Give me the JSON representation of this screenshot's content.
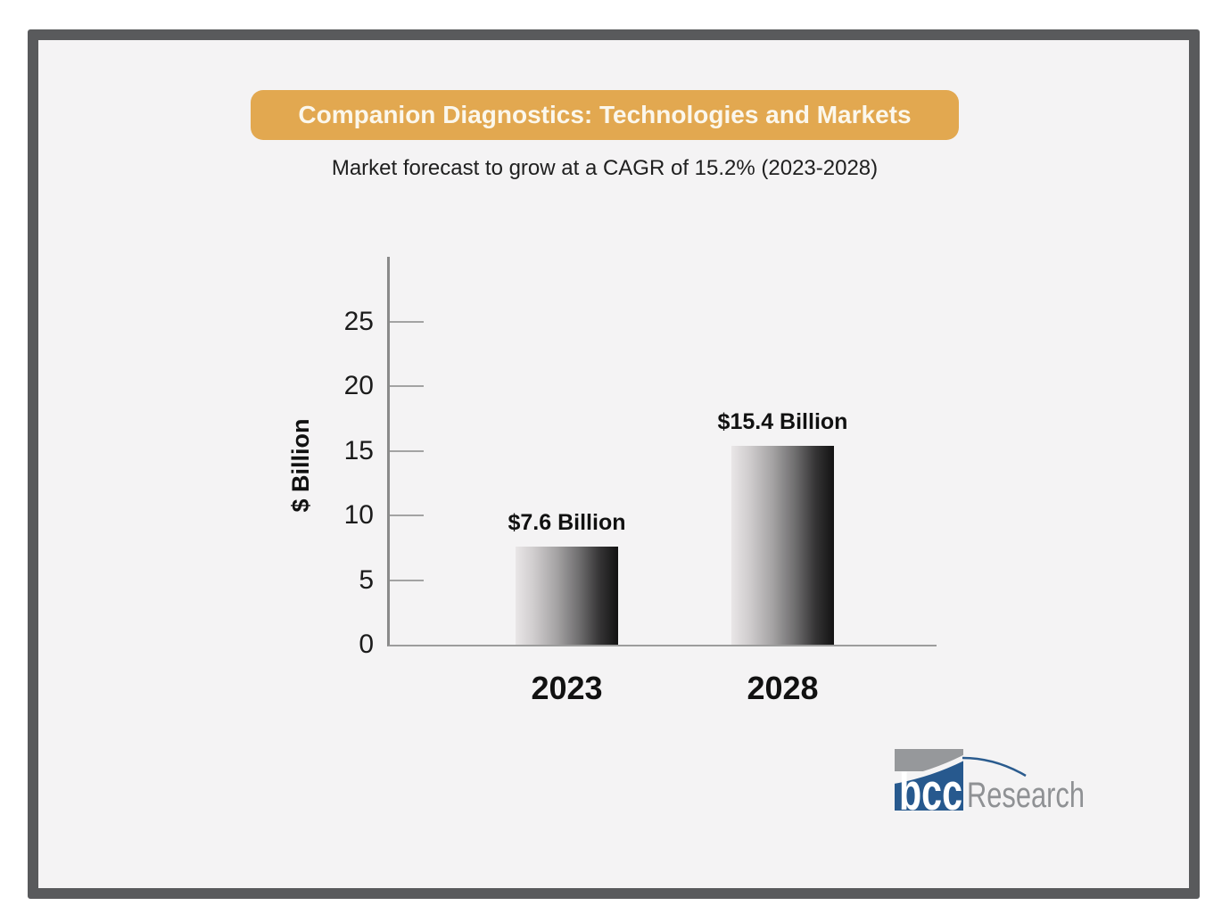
{
  "banner": {
    "title": "Companion Diagnostics: Technologies and Markets"
  },
  "subtitle": "Market forecast to grow at a CAGR of 15.2% (2023-2028)",
  "chart_data": {
    "type": "bar",
    "categories": [
      "2023",
      "2028"
    ],
    "values": [
      7.6,
      15.4
    ],
    "bar_labels": [
      "$7.6 Billion",
      "$15.4 Billion"
    ],
    "title": "",
    "xlabel": "",
    "ylabel": "$ Billion",
    "ylim": [
      0,
      30
    ],
    "yticks": [
      0,
      5,
      10,
      15,
      20,
      25
    ],
    "grid": false,
    "legend": false,
    "bar_style": "horizontal gradient, light gray to black"
  },
  "logo": {
    "bcc": "bcc",
    "research": "Research"
  },
  "colors": {
    "frame_border": "#595a5c",
    "slide_background": "#f4f3f4",
    "banner_background": "#e2a850",
    "banner_text": "#fbf7ec",
    "axis_gray": "#9c9c9c",
    "bar_gradient_start": "#e9e6e7",
    "bar_gradient_end": "#121212",
    "logo_gray": "#96989b",
    "logo_blue": "#27598e",
    "logo_research_text": "#8f9194"
  }
}
